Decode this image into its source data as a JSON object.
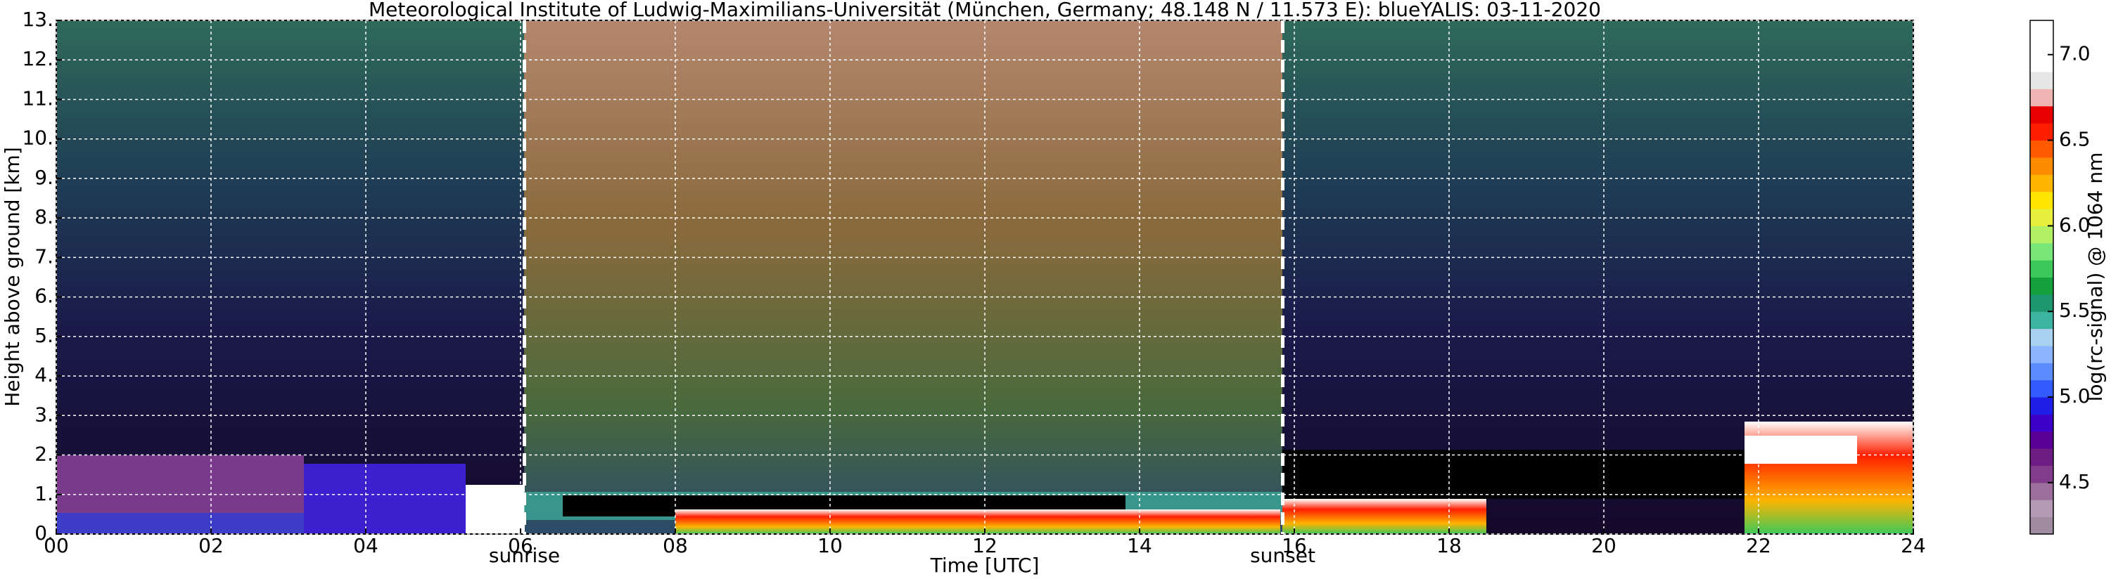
{
  "chart_data": {
    "type": "heatmap",
    "title": "Meteorological Institute of Ludwig-Maximilians-Universität (München, Germany; 48.148 N / 11.573 E):    blueYALIS: 03-11-2020",
    "xlabel": "Time [UTC]",
    "ylabel": "Height above ground [km]",
    "xlim": [
      0,
      24
    ],
    "ylim": [
      0,
      13
    ],
    "xticks": [
      {
        "value": 0,
        "label": "00"
      },
      {
        "value": 2,
        "label": "02"
      },
      {
        "value": 4,
        "label": "04"
      },
      {
        "value": 6,
        "label": "06"
      },
      {
        "value": 8,
        "label": "08"
      },
      {
        "value": 10,
        "label": "10"
      },
      {
        "value": 12,
        "label": "12"
      },
      {
        "value": 14,
        "label": "14"
      },
      {
        "value": 16,
        "label": "16"
      },
      {
        "value": 18,
        "label": "18"
      },
      {
        "value": 20,
        "label": "20"
      },
      {
        "value": 22,
        "label": "22"
      },
      {
        "value": 24,
        "label": "24"
      }
    ],
    "yticks": [
      {
        "value": 0,
        "label": "0."
      },
      {
        "value": 1,
        "label": "1."
      },
      {
        "value": 2,
        "label": "2."
      },
      {
        "value": 3,
        "label": "3."
      },
      {
        "value": 4,
        "label": "4."
      },
      {
        "value": 5,
        "label": "5."
      },
      {
        "value": 6,
        "label": "6."
      },
      {
        "value": 7,
        "label": "7."
      },
      {
        "value": 8,
        "label": "8."
      },
      {
        "value": 9,
        "label": "9."
      },
      {
        "value": 10,
        "label": "10."
      },
      {
        "value": 11,
        "label": "11."
      },
      {
        "value": 12,
        "label": "12."
      },
      {
        "value": 13,
        "label": "13."
      }
    ],
    "grid": true,
    "annotations": [
      {
        "text": "sunrise",
        "x": 6.05
      },
      {
        "text": "sunset",
        "x": 15.85
      }
    ],
    "colorbar": {
      "label": "log(rc-signal) @ 1064 nm",
      "lim": [
        4.2,
        7.2
      ],
      "ticks": [
        4.5,
        {
          "value": 5,
          "label": "5.0"
        },
        5.5,
        {
          "value": 6,
          "label": "6.0"
        },
        6.5,
        {
          "value": 7,
          "label": "7.0"
        }
      ],
      "colors": [
        "#a08ca0",
        "#b49bb4",
        "#9b6e9b",
        "#823c8c",
        "#6e1e82",
        "#5a0096",
        "#3c00c8",
        "#1e1ee6",
        "#325aff",
        "#5a8cff",
        "#8cb4ff",
        "#aad2f0",
        "#3cb4a0",
        "#1e966e",
        "#14a03c",
        "#3cc85a",
        "#78e678",
        "#b4f064",
        "#e6f03c",
        "#ffe600",
        "#ffb400",
        "#ff8c00",
        "#ff5a00",
        "#ff1e00",
        "#e60000",
        "#f0b4b4",
        "#e6e6e6",
        "#ffffff",
        "#ffffff",
        "#ffffff"
      ]
    }
  }
}
